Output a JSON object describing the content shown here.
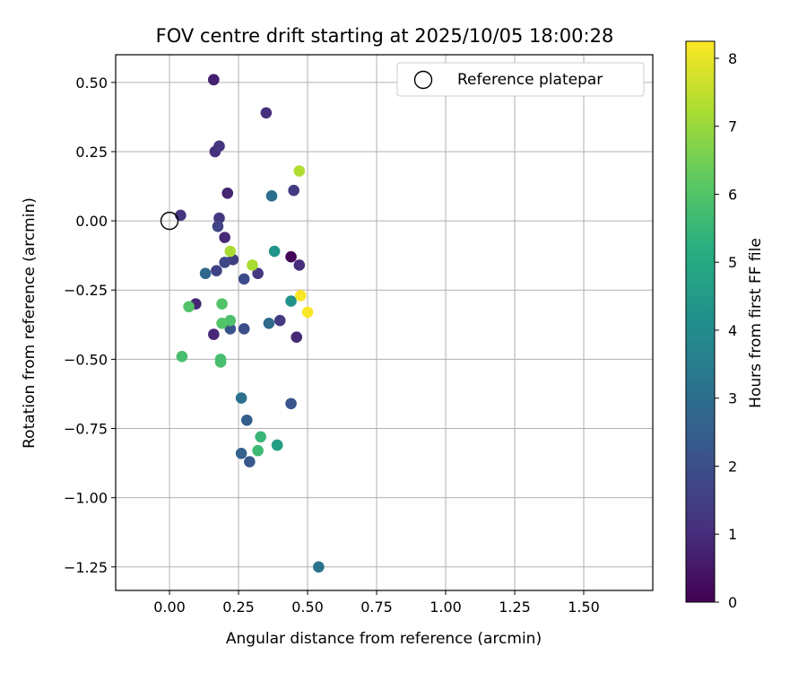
{
  "chart_data": {
    "type": "scatter",
    "title": "FOV centre drift starting at 2025/10/05 18:00:28",
    "xlabel": "Angular distance from reference (arcmin)",
    "ylabel": "Rotation from reference (arcmin)",
    "xlim": [
      -0.195,
      1.75
    ],
    "ylim": [
      -1.335,
      0.6
    ],
    "xticks": [
      0.0,
      0.25,
      0.5,
      0.75,
      1.0,
      1.25,
      1.5
    ],
    "xtick_labels": [
      "0.00",
      "0.25",
      "0.50",
      "0.75",
      "1.00",
      "1.25",
      "1.50"
    ],
    "yticks": [
      0.5,
      0.25,
      0.0,
      -0.25,
      -0.5,
      -0.75,
      -1.0,
      -1.25
    ],
    "ytick_labels": [
      "0.50",
      "0.25",
      "0.00",
      "−0.25",
      "−0.50",
      "−0.75",
      "−1.00",
      "−1.25"
    ],
    "grid": true,
    "legend": {
      "position": "top-right",
      "label": "Reference platepar"
    },
    "reference_point": {
      "x": 0.0,
      "y": 0.0
    },
    "colorbar": {
      "label": "Hours from first FF file",
      "min": 0,
      "max": 8.25,
      "ticks": [
        0,
        1,
        2,
        3,
        4,
        5,
        6,
        7,
        8
      ],
      "tick_labels": [
        "0",
        "1",
        "2",
        "3",
        "4",
        "5",
        "6",
        "7",
        "8"
      ],
      "colormap": "viridis"
    },
    "points": [
      {
        "x": 0.44,
        "y": -0.13,
        "h": 0.1
      },
      {
        "x": 0.16,
        "y": 0.51,
        "h": 0.7
      },
      {
        "x": 0.16,
        "y": 0.51,
        "h": 0.7
      },
      {
        "x": 0.21,
        "y": 0.1,
        "h": 0.8
      },
      {
        "x": 0.095,
        "y": -0.3,
        "h": 0.8
      },
      {
        "x": 0.16,
        "y": -0.41,
        "h": 0.9
      },
      {
        "x": 0.46,
        "y": -0.42,
        "h": 0.9
      },
      {
        "x": 0.2,
        "y": -0.06,
        "h": 0.9
      },
      {
        "x": 0.35,
        "y": 0.39,
        "h": 1.0
      },
      {
        "x": 0.47,
        "y": -0.16,
        "h": 1.0
      },
      {
        "x": 0.165,
        "y": 0.25,
        "h": 1.1
      },
      {
        "x": 0.18,
        "y": 0.27,
        "h": 1.2
      },
      {
        "x": 0.04,
        "y": 0.02,
        "h": 1.2
      },
      {
        "x": 0.18,
        "y": 0.01,
        "h": 1.3
      },
      {
        "x": 0.32,
        "y": -0.19,
        "h": 1.3
      },
      {
        "x": 0.45,
        "y": 0.11,
        "h": 1.4
      },
      {
        "x": 0.4,
        "y": -0.36,
        "h": 1.4
      },
      {
        "x": 0.23,
        "y": -0.14,
        "h": 1.5
      },
      {
        "x": 0.17,
        "y": -0.18,
        "h": 1.6
      },
      {
        "x": 0.175,
        "y": -0.02,
        "h": 1.7
      },
      {
        "x": 0.2,
        "y": -0.15,
        "h": 1.8
      },
      {
        "x": 0.27,
        "y": -0.21,
        "h": 1.9
      },
      {
        "x": 0.27,
        "y": -0.39,
        "h": 2.0
      },
      {
        "x": 0.22,
        "y": -0.39,
        "h": 2.1
      },
      {
        "x": 0.44,
        "y": -0.66,
        "h": 2.2
      },
      {
        "x": 0.29,
        "y": -0.87,
        "h": 2.3
      },
      {
        "x": 0.28,
        "y": -0.72,
        "h": 2.5
      },
      {
        "x": 0.26,
        "y": -0.84,
        "h": 2.6
      },
      {
        "x": 0.13,
        "y": -0.19,
        "h": 2.8
      },
      {
        "x": 0.36,
        "y": -0.37,
        "h": 2.9
      },
      {
        "x": 0.37,
        "y": 0.09,
        "h": 3.0
      },
      {
        "x": 0.26,
        "y": -0.64,
        "h": 3.1
      },
      {
        "x": 0.54,
        "y": -1.25,
        "h": 3.2
      },
      {
        "x": 0.44,
        "y": -0.29,
        "h": 4.2
      },
      {
        "x": 0.38,
        "y": -0.11,
        "h": 4.3
      },
      {
        "x": 0.39,
        "y": -0.81,
        "h": 4.6
      },
      {
        "x": 0.39,
        "y": -0.81,
        "h": 4.6
      },
      {
        "x": 0.33,
        "y": -0.78,
        "h": 5.5
      },
      {
        "x": 0.32,
        "y": -0.83,
        "h": 5.6
      },
      {
        "x": 0.045,
        "y": -0.49,
        "h": 5.8
      },
      {
        "x": 0.185,
        "y": -0.5,
        "h": 5.8
      },
      {
        "x": 0.185,
        "y": -0.51,
        "h": 5.8
      },
      {
        "x": 0.22,
        "y": -0.36,
        "h": 5.9
      },
      {
        "x": 0.19,
        "y": -0.37,
        "h": 6.0
      },
      {
        "x": 0.19,
        "y": -0.3,
        "h": 6.0
      },
      {
        "x": 0.07,
        "y": -0.31,
        "h": 6.0
      },
      {
        "x": 0.22,
        "y": -0.11,
        "h": 7.2
      },
      {
        "x": 0.3,
        "y": -0.16,
        "h": 7.2
      },
      {
        "x": 0.47,
        "y": 0.18,
        "h": 7.3
      },
      {
        "x": 0.475,
        "y": -0.27,
        "h": 8.2
      },
      {
        "x": 0.5,
        "y": -0.33,
        "h": 8.2
      }
    ]
  }
}
